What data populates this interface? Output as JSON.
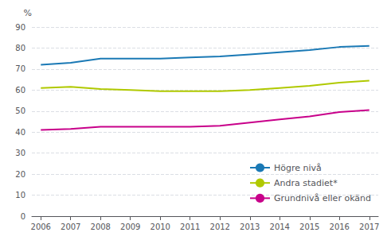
{
  "chart_data": {
    "type": "line",
    "ylabel": "%",
    "x": [
      2006,
      2007,
      2008,
      2009,
      2010,
      2011,
      2012,
      2013,
      2014,
      2015,
      2016,
      2017
    ],
    "series": [
      {
        "name": "Högre nivå",
        "color": "#1a79b5",
        "values": [
          72,
          73,
          75,
          75,
          75,
          75.5,
          76,
          77,
          78,
          79,
          80.5,
          81
        ]
      },
      {
        "name": "Andra stadiet*",
        "color": "#b0c900",
        "values": [
          61,
          61.5,
          60.5,
          60,
          59.5,
          59.5,
          59.5,
          60,
          61,
          62,
          63.5,
          64.5
        ]
      },
      {
        "name": "Grundnivå eller okänd",
        "color": "#c8008a",
        "values": [
          41,
          41.5,
          42.5,
          42.5,
          42.5,
          42.5,
          43,
          44.5,
          46,
          47.5,
          49.5,
          50.5
        ]
      }
    ],
    "xlim": [
      2005.7,
      2017.3
    ],
    "xticks": [
      2006,
      2007,
      2008,
      2009,
      2010,
      2011,
      2012,
      2013,
      2014,
      2015,
      2016,
      2017
    ],
    "ylim": [
      0,
      90
    ],
    "yticks": [
      0,
      10,
      20,
      30,
      40,
      50,
      60,
      70,
      80,
      90
    ],
    "grid": true,
    "legend": "lower right"
  }
}
